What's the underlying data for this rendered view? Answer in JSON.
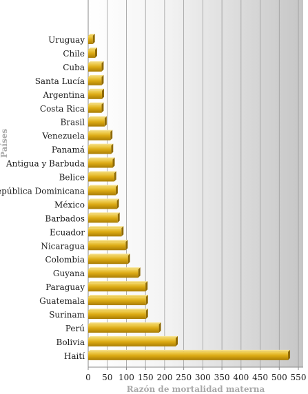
{
  "chart_data": {
    "type": "bar",
    "orientation": "horizontal",
    "xlabel": "Razón de mortalidad materna",
    "ylabel": "Países",
    "xlim": [
      0,
      550
    ],
    "xticks": [
      0,
      50,
      100,
      150,
      200,
      250,
      300,
      350,
      400,
      450,
      500,
      550
    ],
    "grid": true,
    "categories": [
      "Uruguay",
      "Chile",
      "Cuba",
      "Santa Lucía",
      "Argentina",
      "Costa Rica",
      "Brasil",
      "Venezuela",
      "Panamá",
      "Antigua y Barbuda",
      "Belice",
      "República Dominicana",
      "México",
      "Barbados",
      "Ecuador",
      "Nicaragua",
      "Colombia",
      "Guyana",
      "Paraguay",
      "Guatemala",
      "Surinam",
      "Perú",
      "Bolivia",
      "Haití"
    ],
    "values": [
      12,
      18,
      35,
      35,
      36,
      35,
      43,
      58,
      60,
      64,
      68,
      72,
      75,
      77,
      87,
      98,
      104,
      131,
      150,
      151,
      151,
      185,
      229,
      523
    ],
    "bar_color": "#d4a20e"
  }
}
